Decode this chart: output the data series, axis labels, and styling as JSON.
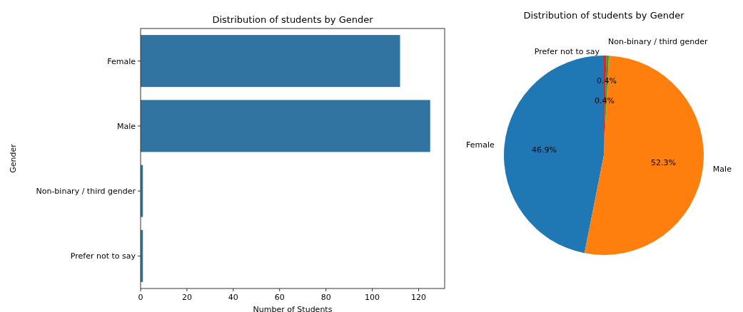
{
  "chart_data": [
    {
      "type": "bar",
      "orientation": "horizontal",
      "title": "Distribution of students by Gender",
      "xlabel": "Number of Students",
      "ylabel": "Gender",
      "categories": [
        "Female",
        "Male",
        "Non-binary / third gender",
        "Prefer not to say"
      ],
      "values": [
        112,
        125,
        1,
        1
      ],
      "color": "#3274a1",
      "xlim": [
        0,
        131.25
      ],
      "xticks": [
        0,
        20,
        40,
        60,
        80,
        100,
        120
      ]
    },
    {
      "type": "pie",
      "title": "Distribution of students by Gender",
      "categories": [
        "Female",
        "Male",
        "Non-binary / third gender",
        "Prefer not to say"
      ],
      "values": [
        46.9,
        52.3,
        0.4,
        0.4
      ],
      "colors": [
        "#1f77b4",
        "#ff7f0e",
        "#2ca02c",
        "#d62728"
      ],
      "value_labels": [
        "46.9%",
        "52.3%",
        "0.4%",
        "0.4%"
      ]
    }
  ]
}
